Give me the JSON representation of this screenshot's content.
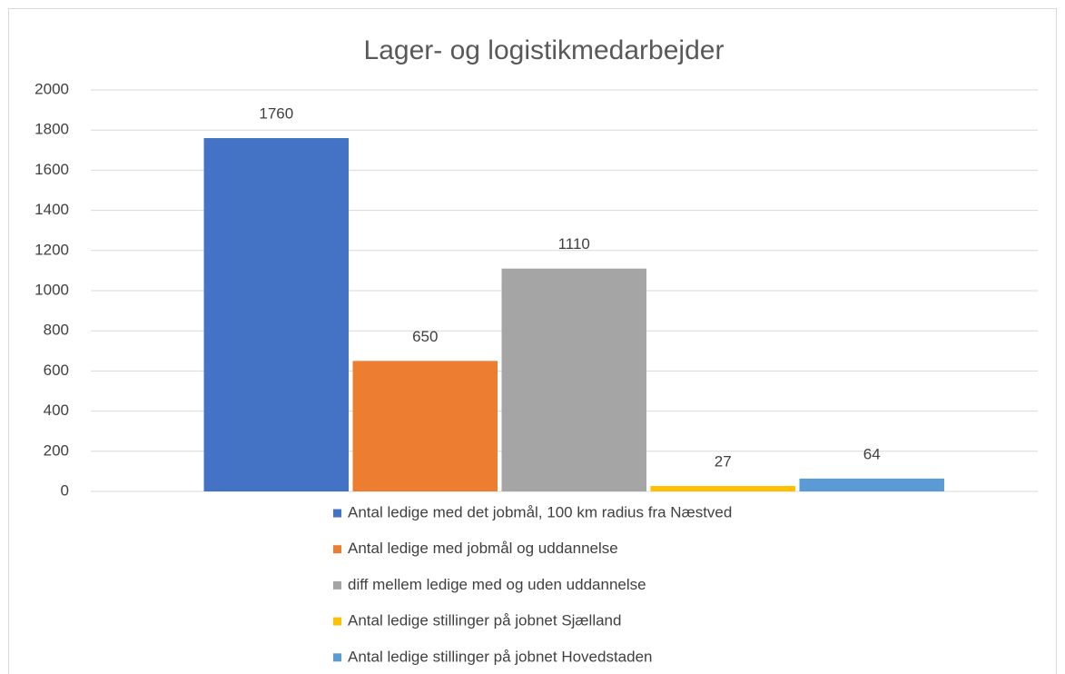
{
  "chart_data": {
    "type": "bar",
    "title": "Lager- og logistikmedarbejder",
    "categories": [
      null
    ],
    "series": [
      {
        "name": "Antal ledige med det jobmål, 100 km radius fra Næstved",
        "color": "#4472c4",
        "values": [
          1760
        ]
      },
      {
        "name": "Antal ledige med jobmål og uddannelse",
        "color": "#ed7d31",
        "values": [
          650
        ]
      },
      {
        "name": "diff mellem ledige med og uden uddannelse",
        "color": "#a5a5a5",
        "values": [
          1110
        ]
      },
      {
        "name": "Antal ledige stillinger på jobnet Sjælland",
        "color": "#ffc000",
        "values": [
          27
        ]
      },
      {
        "name": "Antal ledige stillinger på jobnet Hovedstaden",
        "color": "#5b9bd5",
        "values": [
          64
        ]
      }
    ],
    "ylim": [
      0,
      2000
    ],
    "yticks": [
      0,
      200,
      400,
      600,
      800,
      1000,
      1200,
      1400,
      1600,
      1800,
      2000
    ],
    "grid": true,
    "legend": "bottom"
  }
}
